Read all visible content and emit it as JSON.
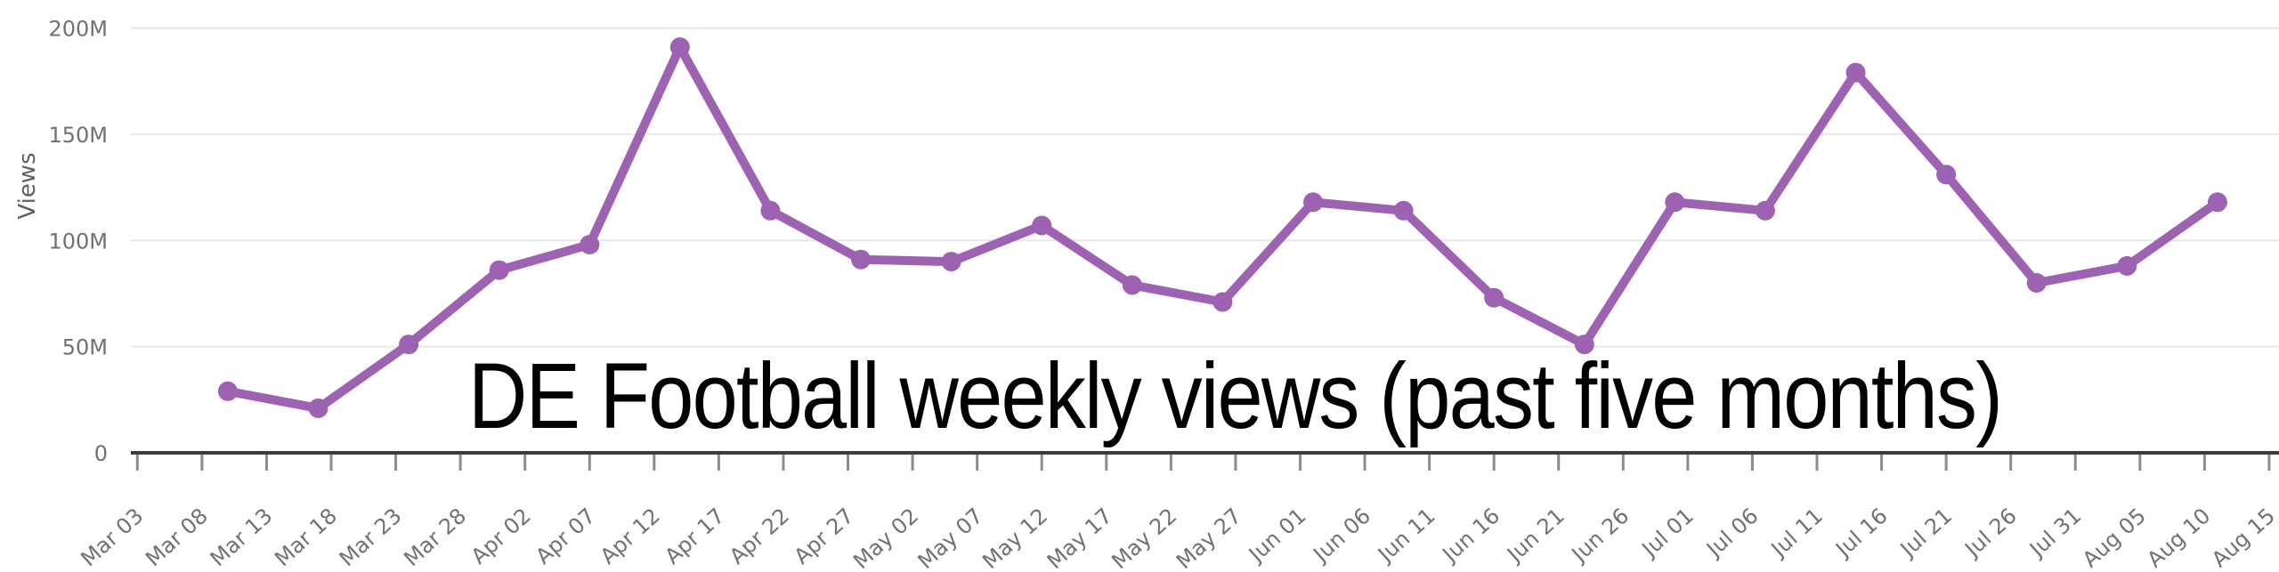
{
  "chart_data": {
    "type": "line",
    "title": "DE Football weekly views (past five months)",
    "xlabel": "",
    "ylabel": "Views",
    "unit": "views (millions)",
    "ylim_millions": [
      0,
      200
    ],
    "grid": "horizontal gridlines only, light gray",
    "legend": "none",
    "y_ticks": [
      {
        "value_millions": 0,
        "label": "0"
      },
      {
        "value_millions": 50,
        "label": "50M"
      },
      {
        "value_millions": 100,
        "label": "100M"
      },
      {
        "value_millions": 150,
        "label": "150M"
      },
      {
        "value_millions": 200,
        "label": "200M"
      }
    ],
    "x_tick_interval_days": 5,
    "x_tick_labels": [
      "Mar 03",
      "Mar 08",
      "Mar 13",
      "Mar 18",
      "Mar 23",
      "Mar 28",
      "Apr 02",
      "Apr 07",
      "Apr 12",
      "Apr 17",
      "Apr 22",
      "Apr 27",
      "May 02",
      "May 07",
      "May 12",
      "May 17",
      "May 22",
      "May 27",
      "Jun 01",
      "Jun 06",
      "Jun 11",
      "Jun 16",
      "Jun 21",
      "Jun 26",
      "Jul 01",
      "Jul 06",
      "Jul 11",
      "Jul 16",
      "Jul 21",
      "Jul 26",
      "Jul 31",
      "Aug 05",
      "Aug 10",
      "Aug 15"
    ],
    "series": [
      {
        "name": "Weekly views",
        "first_point_day_offset": 7,
        "point_interval_days": 7,
        "dates": [
          "Mar 10",
          "Mar 17",
          "Mar 24",
          "Mar 31",
          "Apr 07",
          "Apr 14",
          "Apr 21",
          "Apr 28",
          "May 05",
          "May 12",
          "May 19",
          "May 26",
          "Jun 02",
          "Jun 09",
          "Jun 16",
          "Jun 23",
          "Jun 30",
          "Jul 07",
          "Jul 14",
          "Jul 21",
          "Jul 28",
          "Aug 04",
          "Aug 11"
        ],
        "values_millions": [
          29,
          21,
          51,
          86,
          98,
          191,
          114,
          91,
          90,
          107,
          79,
          71,
          118,
          114,
          73,
          51,
          118,
          114,
          179,
          131,
          80,
          88,
          118
        ]
      }
    ],
    "colors": {
      "line": "#9e62b3",
      "marker": "#9e62b3",
      "gridline": "#e7e7e7",
      "axis_line": "#3d3d3d",
      "tick_mark": "#8c8c8c",
      "tick_label": "#717171",
      "y_axis_title": "#5f5f5f",
      "title_text": "#000000",
      "background": "#ffffff"
    }
  }
}
